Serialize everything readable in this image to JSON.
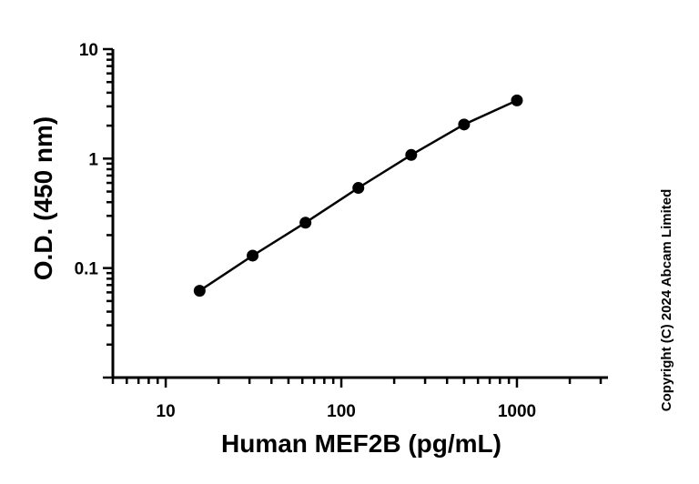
{
  "chart_data": {
    "type": "scatter",
    "title": "",
    "xlabel": "Human MEF2B (pg/mL)",
    "ylabel": "O.D. (450 nm)",
    "x_scale": "log",
    "y_scale": "log",
    "xlim": [
      5,
      3300
    ],
    "ylim": [
      0.01,
      10
    ],
    "x_ticks": [
      10,
      100,
      1000
    ],
    "x_tick_labels": [
      "10",
      "100",
      "1000"
    ],
    "y_ticks": [
      0.1,
      1,
      10
    ],
    "y_tick_labels": [
      "0.1",
      "1",
      "10"
    ],
    "grid": false,
    "legend": "none",
    "fit_line": true,
    "series": [
      {
        "x": [
          15.6,
          31.25,
          62.5,
          125,
          250,
          500,
          1000
        ],
        "y": [
          0.062,
          0.13,
          0.26,
          0.54,
          1.08,
          2.05,
          3.4
        ]
      }
    ]
  },
  "copyright": "Copyright (C) 2024 Abcam Limited",
  "colors": {
    "axis": "#000000",
    "marker": "#000000",
    "line": "#000000",
    "background": "#ffffff"
  }
}
